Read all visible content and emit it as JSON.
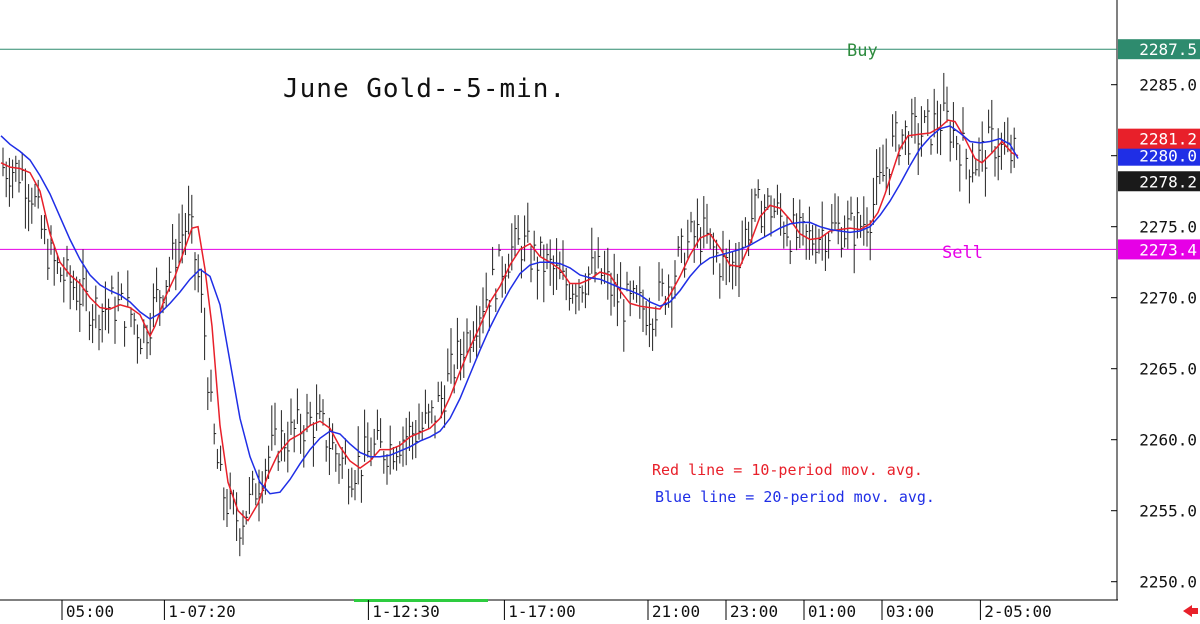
{
  "chart_data": {
    "type": "line",
    "title": "June Gold--5-min.",
    "xlabel": "",
    "ylabel": "",
    "ylim": [
      2248.5,
      2288.5
    ],
    "y_ticks": [
      "2285.0",
      "2280.0",
      "2275.0",
      "2270.0",
      "2265.0",
      "2260.0",
      "2255.0",
      "2250.0"
    ],
    "x_ticks": [
      "05:00",
      "1-07:20",
      "1-12:30",
      "1-17:00",
      "21:00",
      "23:00",
      "01:00",
      "03:00",
      "2-05:00"
    ],
    "price_tags": [
      {
        "label": "2287.5",
        "value": 2287.5,
        "color": "#2e8b6e"
      },
      {
        "label": "2280.0",
        "value": 2280.0,
        "color": "#1f2ee6"
      },
      {
        "label": "2281.2",
        "value": 2281.2,
        "color": "#e8202a"
      },
      {
        "label": "2278.2",
        "value": 2278.2,
        "color": "#1a1a1a"
      },
      {
        "label": "2273.4",
        "value": 2273.4,
        "color": "#e600e6"
      }
    ],
    "horizontal_lines": [
      {
        "name": "Buy",
        "value": 2287.5,
        "color": "#2e8b6e"
      },
      {
        "name": "Sell",
        "value": 2273.4,
        "color": "#e600e6"
      }
    ],
    "annotations": {
      "buy_label": "Buy",
      "sell_label": "Sell",
      "legend_red": "Red line = 10-period mov. avg.",
      "legend_blue": "Blue line = 20-period mov. avg."
    },
    "series": [
      {
        "name": "10-period mov. avg.",
        "color": "#e8202a",
        "points": [
          [
            1,
            2279.5
          ],
          [
            10,
            2279.2
          ],
          [
            20,
            2279.1
          ],
          [
            30,
            2278.8
          ],
          [
            40,
            2277.5
          ],
          [
            50,
            2274.5
          ],
          [
            60,
            2272.5
          ],
          [
            70,
            2271.6
          ],
          [
            80,
            2271.0
          ],
          [
            90,
            2270.0
          ],
          [
            100,
            2269.3
          ],
          [
            110,
            2269.2
          ],
          [
            120,
            2269.5
          ],
          [
            130,
            2269.3
          ],
          [
            140,
            2268.8
          ],
          [
            150,
            2267.3
          ],
          [
            155,
            2268.0
          ],
          [
            165,
            2270.0
          ],
          [
            175,
            2271.5
          ],
          [
            185,
            2273.5
          ],
          [
            192,
            2274.9
          ],
          [
            198,
            2275.0
          ],
          [
            205,
            2272.0
          ],
          [
            212,
            2268.0
          ],
          [
            220,
            2261.0
          ],
          [
            228,
            2257.0
          ],
          [
            238,
            2255.0
          ],
          [
            248,
            2254.3
          ],
          [
            258,
            2255.5
          ],
          [
            268,
            2257.5
          ],
          [
            278,
            2259.0
          ],
          [
            290,
            2260.0
          ],
          [
            300,
            2260.4
          ],
          [
            310,
            2261.0
          ],
          [
            320,
            2261.3
          ],
          [
            330,
            2260.8
          ],
          [
            340,
            2259.5
          ],
          [
            350,
            2258.5
          ],
          [
            360,
            2258.0
          ],
          [
            370,
            2258.5
          ],
          [
            380,
            2259.3
          ],
          [
            390,
            2259.3
          ],
          [
            400,
            2259.6
          ],
          [
            410,
            2260.2
          ],
          [
            420,
            2260.5
          ],
          [
            430,
            2260.8
          ],
          [
            440,
            2261.5
          ],
          [
            450,
            2263.0
          ],
          [
            460,
            2264.8
          ],
          [
            470,
            2266.5
          ],
          [
            480,
            2268.0
          ],
          [
            490,
            2269.7
          ],
          [
            500,
            2270.8
          ],
          [
            510,
            2272.3
          ],
          [
            520,
            2273.4
          ],
          [
            530,
            2273.8
          ],
          [
            540,
            2272.9
          ],
          [
            550,
            2272.5
          ],
          [
            560,
            2272.0
          ],
          [
            570,
            2271.0
          ],
          [
            580,
            2271.0
          ],
          [
            590,
            2271.3
          ],
          [
            600,
            2271.8
          ],
          [
            610,
            2271.6
          ],
          [
            620,
            2270.5
          ],
          [
            630,
            2269.6
          ],
          [
            640,
            2269.4
          ],
          [
            650,
            2269.3
          ],
          [
            660,
            2269.2
          ],
          [
            670,
            2270.2
          ],
          [
            680,
            2271.5
          ],
          [
            690,
            2273.0
          ],
          [
            700,
            2274.2
          ],
          [
            710,
            2274.5
          ],
          [
            720,
            2273.5
          ],
          [
            730,
            2272.3
          ],
          [
            740,
            2272.2
          ],
          [
            750,
            2273.8
          ],
          [
            760,
            2275.7
          ],
          [
            770,
            2276.5
          ],
          [
            780,
            2276.3
          ],
          [
            790,
            2275.5
          ],
          [
            800,
            2274.5
          ],
          [
            810,
            2274.1
          ],
          [
            820,
            2274.2
          ],
          [
            830,
            2274.7
          ],
          [
            840,
            2274.8
          ],
          [
            850,
            2274.9
          ],
          [
            860,
            2274.8
          ],
          [
            870,
            2275.2
          ],
          [
            878,
            2276.0
          ],
          [
            885,
            2277.3
          ],
          [
            893,
            2279.0
          ],
          [
            900,
            2280.5
          ],
          [
            908,
            2281.4
          ],
          [
            918,
            2281.5
          ],
          [
            930,
            2281.6
          ],
          [
            940,
            2282.0
          ],
          [
            948,
            2282.5
          ],
          [
            955,
            2282.4
          ],
          [
            965,
            2281.2
          ],
          [
            975,
            2279.8
          ],
          [
            982,
            2279.5
          ],
          [
            992,
            2280.2
          ],
          [
            1002,
            2281.0
          ],
          [
            1012,
            2280.2
          ],
          [
            1018,
            2280.0
          ]
        ]
      },
      {
        "name": "20-period mov. avg.",
        "color": "#1f2ee6",
        "points": [
          [
            1,
            2281.4
          ],
          [
            10,
            2280.8
          ],
          [
            20,
            2280.3
          ],
          [
            30,
            2279.7
          ],
          [
            40,
            2278.6
          ],
          [
            50,
            2277.3
          ],
          [
            60,
            2275.7
          ],
          [
            70,
            2274.1
          ],
          [
            80,
            2272.7
          ],
          [
            90,
            2271.6
          ],
          [
            100,
            2270.9
          ],
          [
            110,
            2270.5
          ],
          [
            120,
            2270.2
          ],
          [
            130,
            2269.7
          ],
          [
            140,
            2269.0
          ],
          [
            150,
            2268.5
          ],
          [
            160,
            2268.9
          ],
          [
            170,
            2269.6
          ],
          [
            180,
            2270.4
          ],
          [
            190,
            2271.3
          ],
          [
            200,
            2272.0
          ],
          [
            210,
            2271.5
          ],
          [
            220,
            2269.5
          ],
          [
            230,
            2265.5
          ],
          [
            240,
            2261.5
          ],
          [
            250,
            2258.8
          ],
          [
            260,
            2257.0
          ],
          [
            270,
            2256.2
          ],
          [
            280,
            2256.3
          ],
          [
            290,
            2257.2
          ],
          [
            300,
            2258.3
          ],
          [
            310,
            2259.3
          ],
          [
            320,
            2260.1
          ],
          [
            330,
            2260.6
          ],
          [
            340,
            2260.4
          ],
          [
            350,
            2259.7
          ],
          [
            360,
            2259.1
          ],
          [
            370,
            2258.8
          ],
          [
            380,
            2258.8
          ],
          [
            390,
            2258.9
          ],
          [
            400,
            2259.2
          ],
          [
            410,
            2259.5
          ],
          [
            420,
            2259.9
          ],
          [
            430,
            2260.2
          ],
          [
            440,
            2260.6
          ],
          [
            450,
            2261.5
          ],
          [
            460,
            2262.9
          ],
          [
            470,
            2264.6
          ],
          [
            480,
            2266.3
          ],
          [
            490,
            2267.9
          ],
          [
            500,
            2269.3
          ],
          [
            510,
            2270.6
          ],
          [
            520,
            2271.7
          ],
          [
            530,
            2272.3
          ],
          [
            540,
            2272.5
          ],
          [
            550,
            2272.5
          ],
          [
            560,
            2272.4
          ],
          [
            570,
            2272.1
          ],
          [
            580,
            2271.6
          ],
          [
            590,
            2271.4
          ],
          [
            600,
            2271.3
          ],
          [
            610,
            2271.0
          ],
          [
            620,
            2270.7
          ],
          [
            630,
            2270.5
          ],
          [
            640,
            2270.2
          ],
          [
            650,
            2269.7
          ],
          [
            660,
            2269.4
          ],
          [
            670,
            2269.7
          ],
          [
            680,
            2270.5
          ],
          [
            690,
            2271.5
          ],
          [
            700,
            2272.3
          ],
          [
            710,
            2272.8
          ],
          [
            720,
            2273.0
          ],
          [
            730,
            2273.2
          ],
          [
            740,
            2273.4
          ],
          [
            750,
            2273.7
          ],
          [
            760,
            2274.1
          ],
          [
            770,
            2274.5
          ],
          [
            780,
            2274.9
          ],
          [
            790,
            2275.2
          ],
          [
            800,
            2275.3
          ],
          [
            810,
            2275.3
          ],
          [
            820,
            2275.0
          ],
          [
            830,
            2274.8
          ],
          [
            840,
            2274.7
          ],
          [
            850,
            2274.6
          ],
          [
            860,
            2274.7
          ],
          [
            870,
            2275.0
          ],
          [
            880,
            2275.8
          ],
          [
            890,
            2276.8
          ],
          [
            900,
            2278.0
          ],
          [
            910,
            2279.3
          ],
          [
            920,
            2280.5
          ],
          [
            930,
            2281.3
          ],
          [
            940,
            2281.9
          ],
          [
            950,
            2282.1
          ],
          [
            960,
            2281.6
          ],
          [
            970,
            2281.0
          ],
          [
            980,
            2280.9
          ],
          [
            990,
            2281.0
          ],
          [
            1000,
            2281.2
          ],
          [
            1010,
            2280.8
          ],
          [
            1018,
            2279.8
          ]
        ]
      }
    ]
  }
}
